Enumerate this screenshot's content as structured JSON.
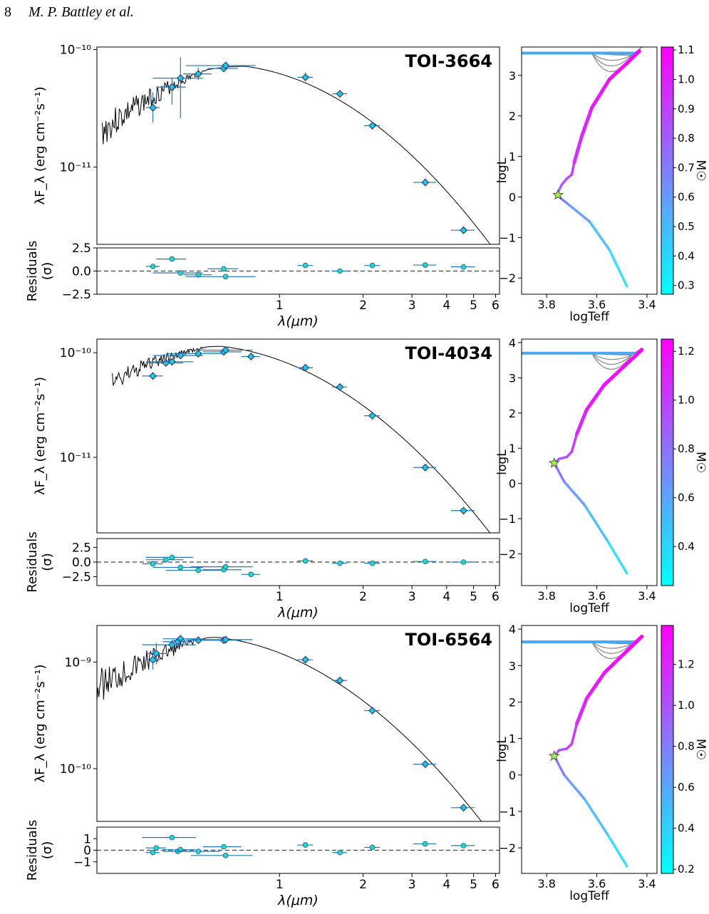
{
  "header": {
    "page_number": "8",
    "authors": "M. P. Battley et al."
  },
  "chart_data": [
    {
      "type": "scatter",
      "title": "TOI-3664",
      "xlabel": "λ(μm)",
      "ylabel": "λF_λ (erg cm⁻²s⁻¹)",
      "residual_label": "Residuals (σ)",
      "xscale": "log",
      "yscale": "log",
      "xlim": [
        0.22,
        6.2
      ],
      "ylim": [
        2.2e-12,
        1.05e-10
      ],
      "y_ticks": [
        {
          "v": 1e-10,
          "label": "10⁻¹⁰"
        },
        {
          "v": 1e-11,
          "label": "10⁻¹¹"
        }
      ],
      "x_ticks": [
        {
          "v": 1,
          "label": "1"
        },
        {
          "v": 2,
          "label": "2"
        },
        {
          "v": 3,
          "label": "3"
        },
        {
          "v": 4,
          "label": "4"
        },
        {
          "v": 5,
          "label": "5"
        },
        {
          "v": 6,
          "label": "6"
        }
      ],
      "res_ylim": [
        -2.5,
        2.5
      ],
      "res_ticks": [
        {
          "v": 2.5,
          "label": "2.5"
        },
        {
          "v": 0,
          "label": "0.0"
        },
        {
          "v": -2.5,
          "label": "−2.5"
        }
      ],
      "sed_peak": 0.75,
      "sed_peak_flux": 7.2e-11,
      "sed_cutoff": 0.23,
      "noise": 0.25,
      "points": [
        {
          "x": 0.35,
          "y": 3.2e-11,
          "xerr": 0.02,
          "ylo": 2.4e-11,
          "yhi": 4.3e-11,
          "res": 0.5
        },
        {
          "x": 0.41,
          "y": 4.8e-11,
          "xerr": 0.05,
          "ylo": 3.4e-11,
          "yhi": 5.8e-11,
          "res": 1.3
        },
        {
          "x": 0.44,
          "y": 5.7e-11,
          "xerr": 0.09,
          "ylo": 2.6e-11,
          "yhi": 8.6e-11,
          "res": -0.2
        },
        {
          "x": 0.51,
          "y": 6.2e-11,
          "xerr": 0.06,
          "ylo": 5.5e-11,
          "yhi": 7e-11,
          "res": -0.4
        },
        {
          "x": 0.63,
          "y": 6.9e-11,
          "xerr": 0.08,
          "ylo": 6.4e-11,
          "yhi": 7.3e-11,
          "res": 0.25
        },
        {
          "x": 0.64,
          "y": 7.3e-11,
          "xerr": 0.18,
          "ylo": 6.8e-11,
          "yhi": 7.8e-11,
          "res": -0.6
        },
        {
          "x": 1.24,
          "y": 5.8e-11,
          "xerr": 0.08,
          "ylo": 5.4e-11,
          "yhi": 6.4e-11,
          "res": 0.6
        },
        {
          "x": 1.65,
          "y": 4.2e-11,
          "xerr": 0.1,
          "ylo": 4e-11,
          "yhi": 4.4e-11,
          "res": 0.0
        },
        {
          "x": 2.16,
          "y": 2.25e-11,
          "xerr": 0.14,
          "ylo": 2.15e-11,
          "yhi": 2.4e-11,
          "res": 0.6
        },
        {
          "x": 3.35,
          "y": 7.4e-12,
          "xerr": 0.32,
          "ylo": 7.1e-12,
          "yhi": 7.7e-12,
          "res": 0.65
        },
        {
          "x": 4.6,
          "y": 2.9e-12,
          "xerr": 0.45,
          "ylo": 2.8e-12,
          "yhi": 3e-12,
          "res": 0.45
        }
      ]
    },
    {
      "type": "scatter",
      "title": "TOI-4034",
      "xlabel": "λ(μm)",
      "ylabel": "λF_λ (erg cm⁻²s⁻¹)",
      "residual_label": "Residuals (σ)",
      "xscale": "log",
      "yscale": "log",
      "xlim": [
        0.22,
        6.2
      ],
      "ylim": [
        1.9e-12,
        1.35e-10
      ],
      "y_ticks": [
        {
          "v": 1e-10,
          "label": "10⁻¹⁰"
        },
        {
          "v": 1e-11,
          "label": "10⁻¹¹"
        }
      ],
      "x_ticks": [
        {
          "v": 1,
          "label": "1"
        },
        {
          "v": 2,
          "label": "2"
        },
        {
          "v": 3,
          "label": "3"
        },
        {
          "v": 4,
          "label": "4"
        },
        {
          "v": 5,
          "label": "5"
        },
        {
          "v": 6,
          "label": "6"
        }
      ],
      "res_ylim": [
        -4,
        4
      ],
      "res_ticks": [
        {
          "v": 2.5,
          "label": "2.5"
        },
        {
          "v": 0,
          "label": "0.0"
        },
        {
          "v": -2.5,
          "label": "−2.5"
        }
      ],
      "sed_peak": 0.62,
      "sed_peak_flux": 1.15e-10,
      "sed_cutoff": 0.25,
      "noise": 0.18,
      "points": [
        {
          "x": 0.35,
          "y": 6e-11,
          "xerr": 0.03,
          "ylo": 5.5e-11,
          "yhi": 6.5e-11,
          "res": -0.3
        },
        {
          "x": 0.39,
          "y": 8e-11,
          "xerr": 0.06,
          "ylo": 7.6e-11,
          "yhi": 8.4e-11,
          "res": 0.4
        },
        {
          "x": 0.41,
          "y": 8.2e-11,
          "xerr": 0.08,
          "ylo": 7.8e-11,
          "yhi": 8.6e-11,
          "res": 0.8
        },
        {
          "x": 0.44,
          "y": 9.4e-11,
          "xerr": 0.09,
          "ylo": 9e-11,
          "yhi": 9.8e-11,
          "res": -0.9
        },
        {
          "x": 0.51,
          "y": 9.8e-11,
          "xerr": 0.12,
          "ylo": 9.4e-11,
          "yhi": 1.02e-10,
          "res": -1.4
        },
        {
          "x": 0.63,
          "y": 1.02e-10,
          "xerr": 0.1,
          "ylo": 9.8e-11,
          "yhi": 1.06e-10,
          "res": -1.3
        },
        {
          "x": 0.64,
          "y": 1.06e-10,
          "xerr": 0.16,
          "ylo": 1.02e-10,
          "yhi": 1.1e-10,
          "res": -0.8
        },
        {
          "x": 0.79,
          "y": 9.2e-11,
          "xerr": 0.06,
          "ylo": 8.9e-11,
          "yhi": 9.5e-11,
          "res": -2.1
        },
        {
          "x": 1.24,
          "y": 7.2e-11,
          "xerr": 0.08,
          "ylo": 6.9e-11,
          "yhi": 7.5e-11,
          "res": 0.2
        },
        {
          "x": 1.65,
          "y": 4.7e-11,
          "xerr": 0.1,
          "ylo": 4.5e-11,
          "yhi": 4.9e-11,
          "res": -0.2
        },
        {
          "x": 2.16,
          "y": 2.5e-11,
          "xerr": 0.14,
          "ylo": 2.4e-11,
          "yhi": 2.6e-11,
          "res": -0.2
        },
        {
          "x": 3.35,
          "y": 8e-12,
          "xerr": 0.32,
          "ylo": 7.7e-12,
          "yhi": 8.3e-12,
          "res": 0.1
        },
        {
          "x": 4.6,
          "y": 3.1e-12,
          "xerr": 0.45,
          "ylo": 3e-12,
          "yhi": 3.2e-12,
          "res": 0.0
        }
      ]
    },
    {
      "type": "scatter",
      "title": "TOI-6564",
      "xlabel": "λ(μm)",
      "ylabel": "λF_λ (erg cm⁻²s⁻¹)",
      "residual_label": "Residuals (σ)",
      "xscale": "log",
      "yscale": "log",
      "xlim": [
        0.22,
        6.2
      ],
      "ylim": [
        3.2e-11,
        2.2e-09
      ],
      "y_ticks": [
        {
          "v": 1e-09,
          "label": "10⁻⁹"
        },
        {
          "v": 1e-10,
          "label": "10⁻¹⁰"
        }
      ],
      "x_ticks": [
        {
          "v": 1,
          "label": "1"
        },
        {
          "v": 2,
          "label": "2"
        },
        {
          "v": 3,
          "label": "3"
        },
        {
          "v": 4,
          "label": "4"
        },
        {
          "v": 5,
          "label": "5"
        },
        {
          "v": 6,
          "label": "6"
        }
      ],
      "res_ylim": [
        -2,
        2
      ],
      "res_ticks": [
        {
          "v": 1,
          "label": "1"
        },
        {
          "v": 0,
          "label": "0"
        },
        {
          "v": -1,
          "label": "−1"
        }
      ],
      "sed_peak": 0.6,
      "sed_peak_flux": 1.7e-09,
      "sed_cutoff": 0.22,
      "noise": 0.3,
      "points": [
        {
          "x": 0.35,
          "y": 1.05e-09,
          "xerr": 0.02,
          "ylo": 8.5e-10,
          "yhi": 1.3e-09,
          "res": -0.2
        },
        {
          "x": 0.36,
          "y": 1.2e-09,
          "xerr": 0.03,
          "ylo": 9.5e-10,
          "yhi": 1.5e-09,
          "res": 0.2
        },
        {
          "x": 0.41,
          "y": 1.45e-09,
          "xerr": 0.09,
          "ylo": 1.3e-09,
          "yhi": 1.6e-09,
          "res": 1.1
        },
        {
          "x": 0.43,
          "y": 1.55e-09,
          "xerr": 0.05,
          "ylo": 1.4e-09,
          "yhi": 1.7e-09,
          "res": -0.1
        },
        {
          "x": 0.44,
          "y": 1.65e-09,
          "xerr": 0.06,
          "ylo": 1.55e-09,
          "yhi": 1.75e-09,
          "res": 0.05
        },
        {
          "x": 0.51,
          "y": 1.6e-09,
          "xerr": 0.1,
          "ylo": 1.5e-09,
          "yhi": 1.7e-09,
          "res": -0.1
        },
        {
          "x": 0.63,
          "y": 1.6e-09,
          "xerr": 0.1,
          "ylo": 1.5e-09,
          "yhi": 1.7e-09,
          "res": 0.3
        },
        {
          "x": 0.64,
          "y": 1.62e-09,
          "xerr": 0.16,
          "ylo": 1.55e-09,
          "yhi": 1.7e-09,
          "res": -0.45
        },
        {
          "x": 1.24,
          "y": 1.05e-09,
          "xerr": 0.08,
          "ylo": 1e-09,
          "yhi": 1.1e-09,
          "res": 0.45
        },
        {
          "x": 1.65,
          "y": 6.7e-10,
          "xerr": 0.1,
          "ylo": 6.4e-10,
          "yhi": 7e-10,
          "res": -0.2
        },
        {
          "x": 2.16,
          "y": 3.5e-10,
          "xerr": 0.14,
          "ylo": 3.35e-10,
          "yhi": 3.65e-10,
          "res": 0.25
        },
        {
          "x": 3.35,
          "y": 1.1e-10,
          "xerr": 0.32,
          "ylo": 1.05e-10,
          "yhi": 1.15e-10,
          "res": 0.55
        },
        {
          "x": 4.6,
          "y": 4.3e-11,
          "xerr": 0.45,
          "ylo": 4.1e-11,
          "yhi": 4.5e-11,
          "res": 0.4
        }
      ]
    },
    {
      "type": "line",
      "xlabel": "logTeff",
      "ylabel": "logL",
      "colorbar_label": "M☉",
      "xlim": [
        3.9,
        3.36
      ],
      "ylim": [
        -2.4,
        3.7
      ],
      "x_ticks": [
        {
          "v": 3.8,
          "label": "3.8"
        },
        {
          "v": 3.6,
          "label": "3.6"
        },
        {
          "v": 3.4,
          "label": "3.4"
        }
      ],
      "y_ticks": [
        {
          "v": 3,
          "label": "3"
        },
        {
          "v": 2,
          "label": "2"
        },
        {
          "v": 1,
          "label": "1"
        },
        {
          "v": 0,
          "label": "0"
        },
        {
          "v": -1,
          "label": "−1"
        },
        {
          "v": -2,
          "label": "−2"
        }
      ],
      "cbar_range": [
        0.27,
        1.11
      ],
      "cbar_ticks": [
        {
          "v": 1.1,
          "label": "1.1"
        },
        {
          "v": 1.0,
          "label": "1.0"
        },
        {
          "v": 0.9,
          "label": "0.9"
        },
        {
          "v": 0.8,
          "label": "0.8"
        },
        {
          "v": 0.7,
          "label": "0.7"
        },
        {
          "v": 0.6,
          "label": "0.6"
        },
        {
          "v": 0.5,
          "label": "0.5"
        },
        {
          "v": 0.4,
          "label": "0.4"
        },
        {
          "v": 0.3,
          "label": "0.3"
        }
      ],
      "star": {
        "x": 3.755,
        "y": 0.05
      },
      "track": [
        {
          "x": 3.48,
          "y": -2.2
        },
        {
          "x": 3.55,
          "y": -1.3
        },
        {
          "x": 3.63,
          "y": -0.6
        },
        {
          "x": 3.72,
          "y": -0.15
        },
        {
          "x": 3.76,
          "y": 0.05
        },
        {
          "x": 3.74,
          "y": 0.3
        },
        {
          "x": 3.72,
          "y": 0.45
        },
        {
          "x": 3.7,
          "y": 0.55
        },
        {
          "x": 3.69,
          "y": 0.85
        },
        {
          "x": 3.66,
          "y": 1.5
        },
        {
          "x": 3.62,
          "y": 2.2
        },
        {
          "x": 3.55,
          "y": 2.9
        },
        {
          "x": 3.48,
          "y": 3.3
        },
        {
          "x": 3.43,
          "y": 3.6
        }
      ],
      "top_line_y": 3.55
    },
    {
      "type": "line",
      "xlabel": "logTeff",
      "ylabel": "logL",
      "colorbar_label": "M☉",
      "xlim": [
        3.9,
        3.36
      ],
      "ylim": [
        -2.9,
        4.1
      ],
      "x_ticks": [
        {
          "v": 3.8,
          "label": "3.8"
        },
        {
          "v": 3.6,
          "label": "3.6"
        },
        {
          "v": 3.4,
          "label": "3.4"
        }
      ],
      "y_ticks": [
        {
          "v": 4,
          "label": "4"
        },
        {
          "v": 3,
          "label": "3"
        },
        {
          "v": 2,
          "label": "2"
        },
        {
          "v": 1,
          "label": "1"
        },
        {
          "v": 0,
          "label": "0"
        },
        {
          "v": -1,
          "label": "−1"
        },
        {
          "v": -2,
          "label": "−2"
        }
      ],
      "cbar_range": [
        0.24,
        1.25
      ],
      "cbar_ticks": [
        {
          "v": 1.2,
          "label": "1.2"
        },
        {
          "v": 1.0,
          "label": "1.0"
        },
        {
          "v": 0.8,
          "label": "0.8"
        },
        {
          "v": 0.6,
          "label": "0.6"
        },
        {
          "v": 0.4,
          "label": "0.4"
        }
      ],
      "star": {
        "x": 3.77,
        "y": 0.58
      },
      "track": [
        {
          "x": 3.48,
          "y": -2.55
        },
        {
          "x": 3.56,
          "y": -1.6
        },
        {
          "x": 3.65,
          "y": -0.6
        },
        {
          "x": 3.73,
          "y": 0.05
        },
        {
          "x": 3.77,
          "y": 0.58
        },
        {
          "x": 3.75,
          "y": 0.7
        },
        {
          "x": 3.72,
          "y": 0.75
        },
        {
          "x": 3.7,
          "y": 0.9
        },
        {
          "x": 3.68,
          "y": 1.4
        },
        {
          "x": 3.64,
          "y": 2.1
        },
        {
          "x": 3.57,
          "y": 2.8
        },
        {
          "x": 3.48,
          "y": 3.4
        },
        {
          "x": 3.42,
          "y": 3.8
        }
      ],
      "top_line_y": 3.7
    },
    {
      "type": "line",
      "xlabel": "logTeff",
      "ylabel": "logL",
      "colorbar_label": "M☉",
      "xlim": [
        3.9,
        3.36
      ],
      "ylim": [
        -2.7,
        4.1
      ],
      "x_ticks": [
        {
          "v": 3.8,
          "label": "3.8"
        },
        {
          "v": 3.6,
          "label": "3.6"
        },
        {
          "v": 3.4,
          "label": "3.4"
        }
      ],
      "y_ticks": [
        {
          "v": 4,
          "label": "4"
        },
        {
          "v": 3,
          "label": "3"
        },
        {
          "v": 2,
          "label": "2"
        },
        {
          "v": 1,
          "label": "1"
        },
        {
          "v": 0,
          "label": "0"
        },
        {
          "v": -1,
          "label": "−1"
        },
        {
          "v": -2,
          "label": "−2"
        }
      ],
      "cbar_range": [
        0.18,
        1.39
      ],
      "cbar_ticks": [
        {
          "v": 1.2,
          "label": "1.2"
        },
        {
          "v": 1.0,
          "label": "1.0"
        },
        {
          "v": 0.8,
          "label": "0.8"
        },
        {
          "v": 0.6,
          "label": "0.6"
        },
        {
          "v": 0.4,
          "label": "0.4"
        },
        {
          "v": 0.2,
          "label": "0.2"
        }
      ],
      "star": {
        "x": 3.77,
        "y": 0.52
      },
      "track": [
        {
          "x": 3.48,
          "y": -2.5
        },
        {
          "x": 3.56,
          "y": -1.6
        },
        {
          "x": 3.65,
          "y": -0.65
        },
        {
          "x": 3.73,
          "y": 0.0
        },
        {
          "x": 3.77,
          "y": 0.52
        },
        {
          "x": 3.75,
          "y": 0.68
        },
        {
          "x": 3.72,
          "y": 0.72
        },
        {
          "x": 3.7,
          "y": 0.85
        },
        {
          "x": 3.68,
          "y": 1.4
        },
        {
          "x": 3.64,
          "y": 2.1
        },
        {
          "x": 3.57,
          "y": 2.8
        },
        {
          "x": 3.48,
          "y": 3.4
        },
        {
          "x": 3.42,
          "y": 3.8
        }
      ],
      "top_line_y": 3.65
    }
  ]
}
